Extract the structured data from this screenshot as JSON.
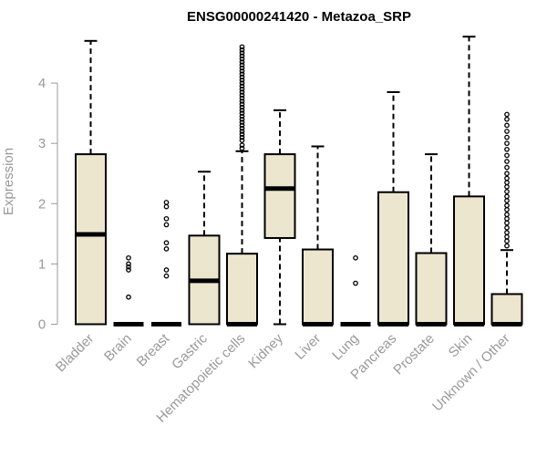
{
  "chart_data": {
    "type": "boxplot",
    "title": "ENSG00000241420 - Metazoa_SRP",
    "xlabel": "",
    "ylabel": "Expression",
    "ylim": [
      0,
      4.8
    ],
    "yticks": [
      0,
      1,
      2,
      3,
      4
    ],
    "categories": [
      "Bladder",
      "Brain",
      "Breast",
      "Gastric",
      "Hematopoietic cells",
      "Kidney",
      "Liver",
      "Lung",
      "Pancreas",
      "Prostate",
      "Skin",
      "Unknown / Other"
    ],
    "boxes": [
      {
        "name": "Bladder",
        "min": 0,
        "q1": 0,
        "median": 1.49,
        "q3": 2.82,
        "max": 4.7,
        "outliers": []
      },
      {
        "name": "Brain",
        "min": 0,
        "q1": 0,
        "median": 0,
        "q3": 0,
        "max": 0,
        "outliers": [
          0.45,
          0.9,
          0.95,
          1.0,
          1.1
        ]
      },
      {
        "name": "Breast",
        "min": 0,
        "q1": 0,
        "median": 0,
        "q3": 0,
        "max": 0,
        "outliers": [
          0.8,
          0.9,
          1.25,
          1.35,
          1.65,
          1.75,
          1.95,
          2.02
        ]
      },
      {
        "name": "Gastric",
        "min": 0,
        "q1": 0,
        "median": 0.72,
        "q3": 1.47,
        "max": 2.53,
        "outliers": []
      },
      {
        "name": "Hematopoietic cells",
        "min": 0,
        "q1": 0,
        "median": 0,
        "q3": 1.17,
        "max": 2.87,
        "outliers": [
          2.92,
          2.97,
          3.05,
          3.1,
          3.15,
          3.2,
          3.25,
          3.3,
          3.35,
          3.4,
          3.45,
          3.5,
          3.55,
          3.6,
          3.65,
          3.7,
          3.75,
          3.8,
          3.85,
          3.9,
          3.95,
          4.0,
          4.05,
          4.1,
          4.15,
          4.2,
          4.25,
          4.3,
          4.35,
          4.4,
          4.45,
          4.5,
          4.55,
          4.6
        ]
      },
      {
        "name": "Kidney",
        "min": 0,
        "q1": 1.43,
        "median": 2.25,
        "q3": 2.82,
        "max": 3.55,
        "outliers": []
      },
      {
        "name": "Liver",
        "min": 0,
        "q1": 0,
        "median": 0,
        "q3": 1.24,
        "max": 2.95,
        "outliers": []
      },
      {
        "name": "Lung",
        "min": 0,
        "q1": 0,
        "median": 0,
        "q3": 0,
        "max": 0,
        "outliers": [
          0.68,
          1.1
        ]
      },
      {
        "name": "Pancreas",
        "min": 0,
        "q1": 0,
        "median": 0,
        "q3": 2.19,
        "max": 3.85,
        "outliers": []
      },
      {
        "name": "Prostate",
        "min": 0,
        "q1": 0,
        "median": 0,
        "q3": 1.18,
        "max": 2.82,
        "outliers": []
      },
      {
        "name": "Skin",
        "min": 0,
        "q1": 0,
        "median": 0,
        "q3": 2.12,
        "max": 4.77,
        "outliers": []
      },
      {
        "name": "Unknown / Other",
        "min": 0,
        "q1": 0,
        "median": 0,
        "q3": 0.5,
        "max": 1.23,
        "outliers": [
          1.3,
          1.38,
          1.45,
          1.52,
          1.6,
          1.68,
          1.75,
          1.82,
          1.9,
          1.97,
          2.05,
          2.12,
          2.2,
          2.28,
          2.35,
          2.42,
          2.5,
          2.6,
          2.7,
          2.8,
          2.9,
          3.0,
          3.1,
          3.2,
          3.3,
          3.4,
          3.48
        ]
      }
    ],
    "colors": {
      "box_fill": "#ede6cf",
      "stroke": "#000000",
      "axis": "#999999"
    }
  }
}
